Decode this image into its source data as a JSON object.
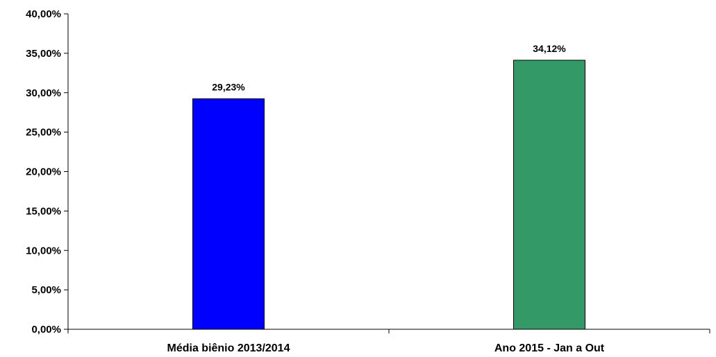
{
  "chart_data": {
    "type": "bar",
    "categories": [
      "Média biênio 2013/2014",
      "Ano 2015 - Jan a Out"
    ],
    "values": [
      29.23,
      34.12
    ],
    "value_labels": [
      "29,23%",
      "34,12%"
    ],
    "bar_colors": [
      "#0000ff",
      "#339966"
    ],
    "ylim": [
      0,
      40
    ],
    "yticks": [
      0,
      5,
      10,
      15,
      20,
      25,
      30,
      35,
      40
    ],
    "ytick_labels": [
      "0,00%",
      "5,00%",
      "10,00%",
      "15,00%",
      "20,00%",
      "25,00%",
      "30,00%",
      "35,00%",
      "40,00%"
    ],
    "grid": false,
    "legend": "none"
  }
}
